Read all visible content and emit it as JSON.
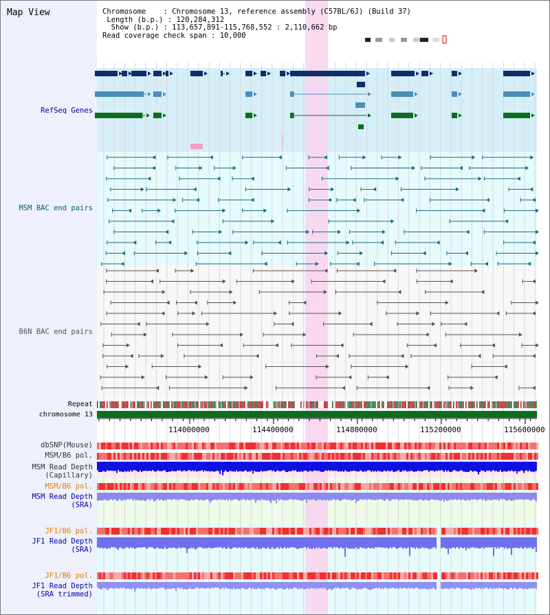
{
  "title": "Map View",
  "info": {
    "chromosome_key": "Chromosome",
    "chromosome_value": "Chromosome 13, reference assembly (C57BL/6J) (Build 37)",
    "length_key": "Length (b.p.)",
    "length_value": "120,284,312",
    "show_key": "Show (b.p.)",
    "show_value": "113,657,891-115,768,552 : 2,110,662 bp",
    "coverage_key": "Read coverage check span",
    "coverage_value": "10,000"
  },
  "tracks": {
    "refseq": "RefSeq Genes",
    "msm_bac": "MSM BAC end pairs",
    "b6n_bac": "B6N BAC end pairs",
    "repeat": "Repeat",
    "chromosome": "chromosome 13",
    "dbsnp": "dbSNP(Mouse)",
    "msm_pol1": "MSM/B6 pol.",
    "msm_depth_cap_1": "MSM Read Depth",
    "msm_depth_cap_2": "(Capillary)",
    "msm_pol2": "MSM/B6 pol.",
    "msm_depth_sra_1": "MSM Read Depth",
    "msm_depth_sra_2": "(SRA)",
    "jf1_pol1": "JF1/B6 pol.",
    "jf1_depth_sra_1": "JF1 Read Depth",
    "jf1_depth_sra_2": "(SRA)",
    "jf1_pol2": "JF1/B6 pol.",
    "jf1_depth_trim_1": "JF1 Read Depth",
    "jf1_depth_trim_2": "(SRA trimmed)"
  },
  "axis": {
    "ticks": [
      "114000000",
      "114400000",
      "114800000",
      "115200000",
      "115600000"
    ]
  },
  "colors": {
    "highlight": "#f9d2f0",
    "refseq_bg": "#d6eef8",
    "msm_bg": "#e6fbfb",
    "b6n_bg": "#f7f7f7",
    "gene_dark": "#0e2d6a",
    "gene_light": "#4a8eb8",
    "gene_green": "#0a6e1e",
    "chromosome": "#0a6e1e"
  }
}
